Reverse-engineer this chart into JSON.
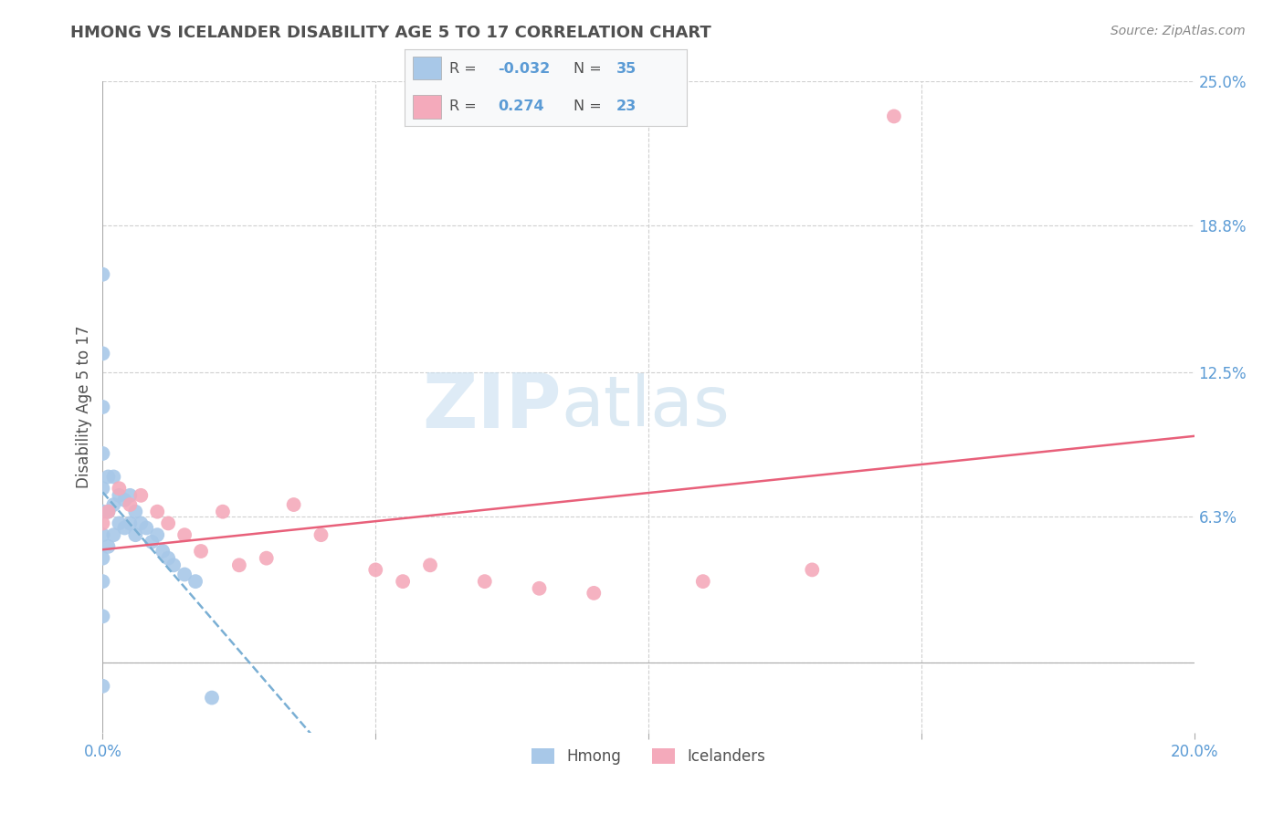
{
  "title": "HMONG VS ICELANDER DISABILITY AGE 5 TO 17 CORRELATION CHART",
  "source_text": "Source: ZipAtlas.com",
  "ylabel": "Disability Age 5 to 17",
  "xlim": [
    0.0,
    0.2
  ],
  "ylim": [
    -0.03,
    0.25
  ],
  "yplot_min": -0.03,
  "yplot_max": 0.25,
  "xticks": [
    0.0,
    0.05,
    0.1,
    0.15,
    0.2
  ],
  "xticklabels": [
    "0.0%",
    "",
    "",
    "",
    "20.0%"
  ],
  "ytick_positions": [
    0.0,
    0.063,
    0.125,
    0.188,
    0.25
  ],
  "yticklabels_right": [
    "",
    "6.3%",
    "12.5%",
    "18.8%",
    "25.0%"
  ],
  "hmong_color": "#a8c8e8",
  "hmong_line_color": "#7aafd4",
  "icelander_color": "#f4aabb",
  "icelander_line_color": "#e8607a",
  "background_color": "#ffffff",
  "grid_color": "#d0d0d0",
  "title_color": "#505050",
  "axis_label_color": "#5b9bd5",
  "watermark_color": "#ddeeff",
  "hmong_x": [
    0.0,
    0.0,
    0.0,
    0.0,
    0.0,
    0.0,
    0.0,
    0.0,
    0.0,
    0.0,
    0.0,
    0.001,
    0.001,
    0.001,
    0.002,
    0.002,
    0.002,
    0.003,
    0.003,
    0.004,
    0.004,
    0.005,
    0.005,
    0.006,
    0.006,
    0.007,
    0.008,
    0.009,
    0.01,
    0.011,
    0.012,
    0.013,
    0.015,
    0.017,
    0.02
  ],
  "hmong_y": [
    0.167,
    0.133,
    0.11,
    0.09,
    0.075,
    0.065,
    0.055,
    0.045,
    0.035,
    0.02,
    -0.01,
    0.08,
    0.065,
    0.05,
    0.08,
    0.068,
    0.055,
    0.072,
    0.06,
    0.07,
    0.058,
    0.072,
    0.06,
    0.065,
    0.055,
    0.06,
    0.058,
    0.052,
    0.055,
    0.048,
    0.045,
    0.042,
    0.038,
    0.035,
    -0.015
  ],
  "icelander_x": [
    0.0,
    0.001,
    0.003,
    0.005,
    0.007,
    0.01,
    0.012,
    0.015,
    0.018,
    0.022,
    0.025,
    0.03,
    0.035,
    0.04,
    0.05,
    0.055,
    0.06,
    0.07,
    0.08,
    0.09,
    0.11,
    0.13,
    0.145
  ],
  "icelander_y": [
    0.06,
    0.065,
    0.075,
    0.068,
    0.072,
    0.065,
    0.06,
    0.055,
    0.048,
    0.065,
    0.042,
    0.045,
    0.068,
    0.055,
    0.04,
    0.035,
    0.042,
    0.035,
    0.032,
    0.03,
    0.035,
    0.04,
    0.235
  ]
}
